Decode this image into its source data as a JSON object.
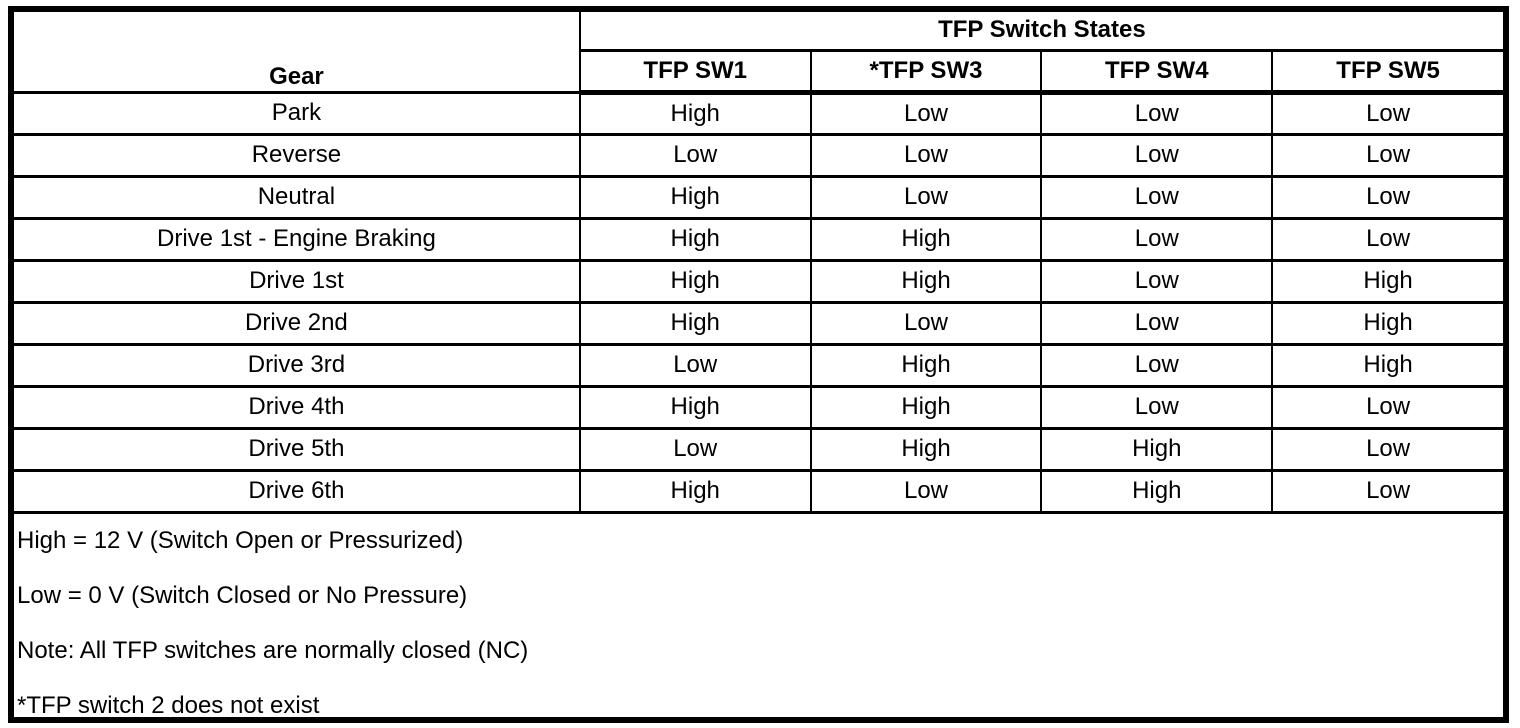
{
  "table": {
    "gear_header": "Gear",
    "group_header": "TFP Switch States",
    "columns": [
      "TFP SW1",
      "*TFP SW3",
      "TFP SW4",
      "TFP SW5"
    ],
    "rows": [
      {
        "gear": "Park",
        "values": [
          "High",
          "Low",
          "Low",
          "Low"
        ]
      },
      {
        "gear": "Reverse",
        "values": [
          "Low",
          "Low",
          "Low",
          "Low"
        ]
      },
      {
        "gear": "Neutral",
        "values": [
          "High",
          "Low",
          "Low",
          "Low"
        ]
      },
      {
        "gear": "Drive 1st - Engine Braking",
        "values": [
          "High",
          "High",
          "Low",
          "Low"
        ]
      },
      {
        "gear": "Drive 1st",
        "values": [
          "High",
          "High",
          "Low",
          "High"
        ]
      },
      {
        "gear": "Drive 2nd",
        "values": [
          "High",
          "Low",
          "Low",
          "High"
        ]
      },
      {
        "gear": "Drive 3rd",
        "values": [
          "Low",
          "High",
          "Low",
          "High"
        ]
      },
      {
        "gear": "Drive 4th",
        "values": [
          "High",
          "High",
          "Low",
          "Low"
        ]
      },
      {
        "gear": "Drive 5th",
        "values": [
          "Low",
          "High",
          "High",
          "Low"
        ]
      },
      {
        "gear": "Drive 6th",
        "values": [
          "High",
          "Low",
          "High",
          "Low"
        ]
      }
    ]
  },
  "notes": [
    "High = 12 V (Switch Open or Pressurized)",
    "Low = 0 V (Switch Closed or No Pressure)",
    "Note: All TFP switches are normally closed (NC)",
    "*TFP switch 2 does not exist"
  ],
  "colors": {
    "border": "#000000",
    "background": "#ffffff",
    "text": "#000000"
  }
}
